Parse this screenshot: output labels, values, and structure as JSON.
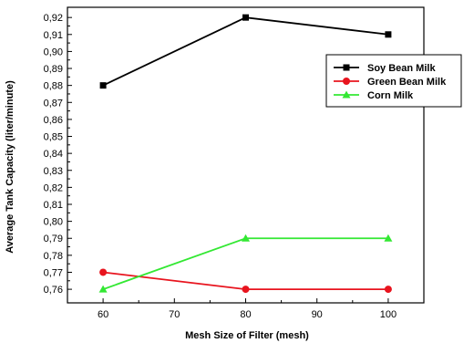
{
  "chart_data": {
    "type": "line",
    "title": "",
    "xlabel": "Mesh Size of Filter (mesh)",
    "ylabel": "Average Tank Capacity (liter/minute)",
    "x": [
      60,
      80,
      100
    ],
    "xticks": [
      60,
      70,
      80,
      90,
      100
    ],
    "xtick_labels": [
      "60",
      "70",
      "80",
      "90",
      "100"
    ],
    "xlim": [
      55,
      105
    ],
    "ylim": [
      0.752,
      0.926
    ],
    "yticks": [
      0.76,
      0.77,
      0.78,
      0.79,
      0.8,
      0.81,
      0.82,
      0.83,
      0.84,
      0.85,
      0.86,
      0.87,
      0.88,
      0.89,
      0.9,
      0.91,
      0.92
    ],
    "ytick_labels": [
      "0,76",
      "0,77",
      "0,78",
      "0,79",
      "0,80",
      "0,81",
      "0,82",
      "0,83",
      "0,84",
      "0,85",
      "0,86",
      "0,87",
      "0,88",
      "0,89",
      "0,90",
      "0,91",
      "0,92"
    ],
    "grid": false,
    "legend_position": "top-right",
    "series": [
      {
        "name": "Soy Bean Milk",
        "values": [
          0.88,
          0.92,
          0.91
        ],
        "color": "#000000",
        "marker": "square"
      },
      {
        "name": "Green Bean Milk",
        "values": [
          0.77,
          0.76,
          0.76
        ],
        "color": "#e8141e",
        "marker": "circle"
      },
      {
        "name": "Corn Milk",
        "values": [
          0.76,
          0.79,
          0.79
        ],
        "color": "#33e833",
        "marker": "triangle"
      }
    ]
  }
}
